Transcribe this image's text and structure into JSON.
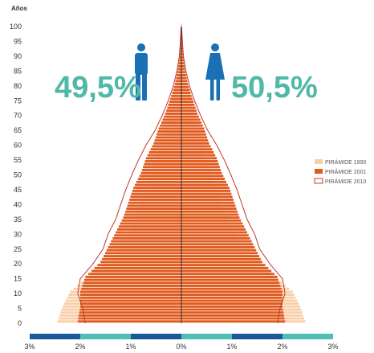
{
  "chart_data": {
    "type": "bar",
    "orientation": "horizontal-pyramid",
    "y_unit_label": "Años",
    "y_ticks": [
      0,
      5,
      10,
      15,
      20,
      25,
      30,
      35,
      40,
      45,
      50,
      55,
      60,
      65,
      70,
      75,
      80,
      85,
      90,
      95,
      100
    ],
    "x_ticks": [
      {
        "value": -3,
        "label": "3%"
      },
      {
        "value": -2,
        "label": "2%"
      },
      {
        "value": -1,
        "label": "1%"
      },
      {
        "value": 0,
        "label": "0%"
      },
      {
        "value": 1,
        "label": "1%"
      },
      {
        "value": 2,
        "label": "2%"
      },
      {
        "value": 3,
        "label": "3%"
      }
    ],
    "xlim": [
      -3,
      3
    ],
    "ylim": [
      0,
      100
    ],
    "male_share": "49,5%",
    "female_share": "50,5%",
    "age_groups": [
      0,
      5,
      10,
      15,
      20,
      25,
      30,
      35,
      40,
      45,
      50,
      55,
      60,
      65,
      70,
      75,
      80,
      85,
      90,
      95,
      100
    ],
    "series": [
      {
        "name": "PIRÁMIDE 1990",
        "color": "#f9cfa8",
        "values": [
          2.45,
          2.35,
          2.2,
          1.85,
          1.45,
          1.2,
          1.05,
          0.9,
          0.8,
          0.7,
          0.6,
          0.5,
          0.4,
          0.32,
          0.24,
          0.16,
          0.1,
          0.05,
          0.03,
          0.015,
          0.005
        ]
      },
      {
        "name": "PIRÁMIDE 2001",
        "color": "#e05a1e",
        "values": [
          2.05,
          2.0,
          2.0,
          1.9,
          1.6,
          1.45,
          1.3,
          1.15,
          1.05,
          0.95,
          0.8,
          0.7,
          0.55,
          0.45,
          0.32,
          0.22,
          0.13,
          0.07,
          0.03,
          0.015,
          0.005
        ]
      },
      {
        "name": "PIRÁMIDE 2010",
        "color": "#c0392b",
        "values": [
          1.9,
          1.95,
          2.05,
          2.0,
          1.75,
          1.55,
          1.45,
          1.3,
          1.2,
          1.1,
          0.98,
          0.85,
          0.7,
          0.52,
          0.38,
          0.26,
          0.16,
          0.09,
          0.04,
          0.02,
          0.005
        ]
      }
    ],
    "legend_position": "right",
    "grid": false
  },
  "colors": {
    "male": "#1a6fb5",
    "female": "#1a6fb5",
    "percent_text": "#4fb8a8",
    "axis_bar_dark": "#1a5a9a",
    "axis_bar_light": "#4fbfb5",
    "center_line": "#333333"
  },
  "icons": {
    "male": "male-figure-icon",
    "female": "female-figure-icon"
  }
}
